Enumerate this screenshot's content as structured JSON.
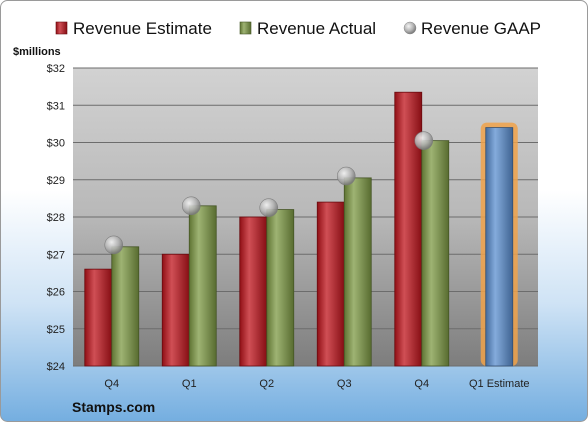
{
  "chart_data": {
    "type": "bar",
    "ylabel": "$millions",
    "ylim": [
      24,
      32
    ],
    "yticks": [
      "$24",
      "$25",
      "$26",
      "$27",
      "$28",
      "$29",
      "$30",
      "$31",
      "$32"
    ],
    "categories": [
      "Q4",
      "Q1",
      "Q2",
      "Q3",
      "Q4",
      "Q1 Estimate"
    ],
    "series": [
      {
        "name": "Revenue Estimate",
        "kind": "bar",
        "color": "#c0141c",
        "values": [
          26.6,
          27.0,
          28.0,
          28.4,
          31.35,
          null
        ]
      },
      {
        "name": "Revenue Actual",
        "kind": "bar",
        "color": "#7e9a44",
        "values": [
          27.2,
          28.3,
          28.2,
          29.05,
          30.05,
          null
        ]
      },
      {
        "name": "Revenue GAAP",
        "kind": "marker",
        "color": "#a8a8a8",
        "values": [
          27.25,
          28.3,
          28.25,
          29.1,
          30.05,
          null
        ]
      },
      {
        "name": "",
        "kind": "bar",
        "color": "#5b8fd0",
        "highlight": "#f0a24a",
        "values": [
          null,
          null,
          null,
          null,
          null,
          30.4
        ]
      }
    ],
    "legend": "top",
    "grid": true,
    "brand": "Stamps.com"
  }
}
